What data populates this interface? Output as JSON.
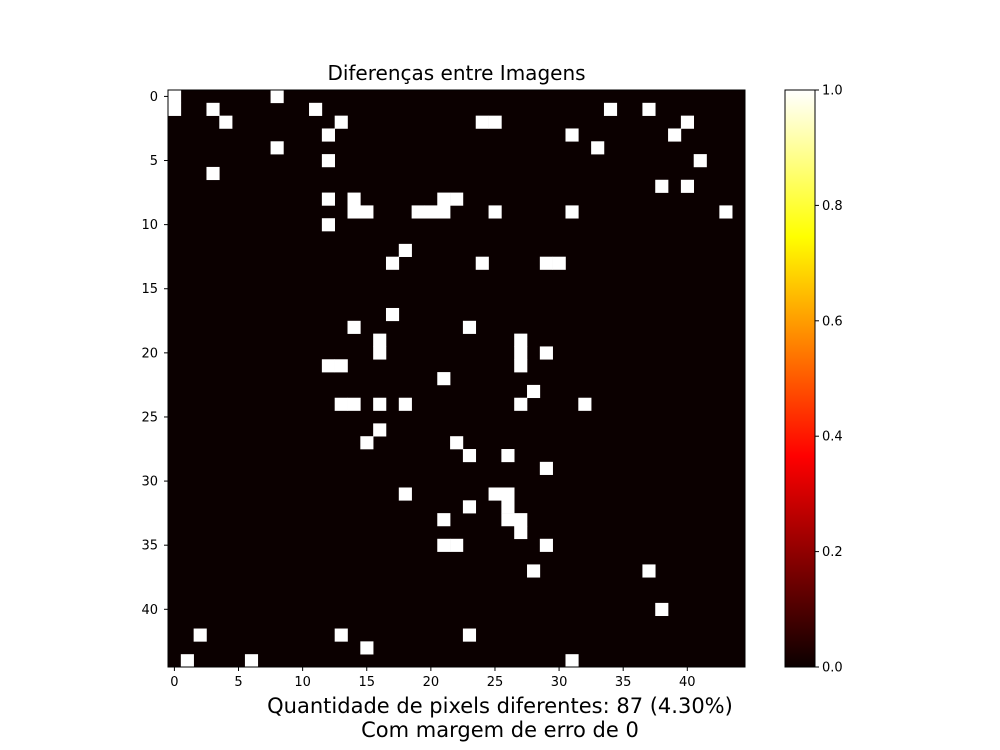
{
  "chart_data": {
    "type": "heatmap",
    "title": "Diferenças entre Imagens",
    "xlabel": "Quantidade de pixels diferentes: 87 (4.30%)",
    "xlabel_line2": "Com margem de erro de 0",
    "ylabel": "",
    "width": 45,
    "height": 45,
    "colormap": "hot",
    "background_color": "#0b0000",
    "highlight_color": "#ffffff",
    "xticks": [
      0,
      5,
      10,
      15,
      20,
      25,
      30,
      35,
      40
    ],
    "yticks": [
      0,
      5,
      10,
      15,
      20,
      25,
      30,
      35,
      40
    ],
    "colorbar": {
      "min": 0.0,
      "max": 1.0,
      "ticks": [
        "0.0",
        "0.2",
        "0.4",
        "0.6",
        "0.8",
        "1.0"
      ]
    },
    "value_on": 1,
    "value_off": 0,
    "points": [
      [
        0,
        0
      ],
      [
        8,
        0
      ],
      [
        0,
        1
      ],
      [
        3,
        1
      ],
      [
        11,
        1
      ],
      [
        34,
        1
      ],
      [
        37,
        1
      ],
      [
        4,
        2
      ],
      [
        13,
        2
      ],
      [
        24,
        2
      ],
      [
        25,
        2
      ],
      [
        40,
        2
      ],
      [
        12,
        3
      ],
      [
        31,
        3
      ],
      [
        39,
        3
      ],
      [
        8,
        4
      ],
      [
        33,
        4
      ],
      [
        12,
        5
      ],
      [
        41,
        5
      ],
      [
        3,
        6
      ],
      [
        38,
        7
      ],
      [
        40,
        7
      ],
      [
        12,
        8
      ],
      [
        14,
        8
      ],
      [
        21,
        8
      ],
      [
        22,
        8
      ],
      [
        14,
        9
      ],
      [
        15,
        9
      ],
      [
        19,
        9
      ],
      [
        20,
        9
      ],
      [
        21,
        9
      ],
      [
        25,
        9
      ],
      [
        31,
        9
      ],
      [
        43,
        9
      ],
      [
        12,
        10
      ],
      [
        18,
        12
      ],
      [
        17,
        13
      ],
      [
        24,
        13
      ],
      [
        29,
        13
      ],
      [
        30,
        13
      ],
      [
        17,
        17
      ],
      [
        14,
        18
      ],
      [
        23,
        18
      ],
      [
        16,
        19
      ],
      [
        27,
        19
      ],
      [
        16,
        20
      ],
      [
        27,
        20
      ],
      [
        29,
        20
      ],
      [
        12,
        21
      ],
      [
        13,
        21
      ],
      [
        27,
        21
      ],
      [
        21,
        22
      ],
      [
        28,
        23
      ],
      [
        13,
        24
      ],
      [
        14,
        24
      ],
      [
        16,
        24
      ],
      [
        18,
        24
      ],
      [
        27,
        24
      ],
      [
        32,
        24
      ],
      [
        16,
        26
      ],
      [
        15,
        27
      ],
      [
        22,
        27
      ],
      [
        23,
        28
      ],
      [
        26,
        28
      ],
      [
        29,
        29
      ],
      [
        18,
        31
      ],
      [
        25,
        31
      ],
      [
        26,
        31
      ],
      [
        23,
        32
      ],
      [
        26,
        32
      ],
      [
        21,
        33
      ],
      [
        26,
        33
      ],
      [
        27,
        33
      ],
      [
        27,
        34
      ],
      [
        21,
        35
      ],
      [
        22,
        35
      ],
      [
        29,
        35
      ],
      [
        28,
        37
      ],
      [
        37,
        37
      ],
      [
        38,
        40
      ],
      [
        2,
        42
      ],
      [
        13,
        42
      ],
      [
        23,
        42
      ],
      [
        15,
        43
      ],
      [
        1,
        44
      ],
      [
        6,
        44
      ],
      [
        31,
        44
      ]
    ]
  }
}
